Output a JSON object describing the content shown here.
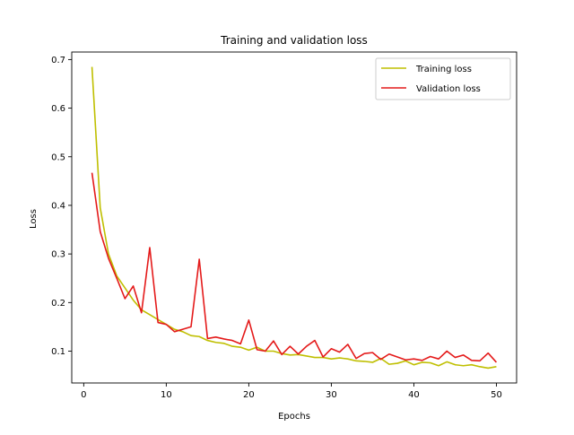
{
  "chart_data": {
    "type": "line",
    "title": "Training and validation loss",
    "xlabel": "Epochs",
    "ylabel": "Loss",
    "xlim": [
      -1.45,
      52.45
    ],
    "ylim": [
      0.0345,
      0.7155
    ],
    "xticks": [
      0,
      10,
      20,
      30,
      40,
      50
    ],
    "yticks": [
      0.1,
      0.2,
      0.3,
      0.4,
      0.5,
      0.6,
      0.7
    ],
    "xtick_labels": [
      "0",
      "10",
      "20",
      "30",
      "40",
      "50"
    ],
    "ytick_labels": [
      "0.1",
      "0.2",
      "0.3",
      "0.4",
      "0.5",
      "0.6",
      "0.7"
    ],
    "legend_position": "upper right",
    "grid": false,
    "x": [
      1,
      2,
      3,
      4,
      5,
      6,
      7,
      8,
      9,
      10,
      11,
      12,
      13,
      14,
      15,
      16,
      17,
      18,
      19,
      20,
      21,
      22,
      23,
      24,
      25,
      26,
      27,
      28,
      29,
      30,
      31,
      32,
      33,
      34,
      35,
      36,
      37,
      38,
      39,
      40,
      41,
      42,
      43,
      44,
      45,
      46,
      47,
      48,
      49,
      50
    ],
    "series": [
      {
        "name": "Training loss",
        "color": "#bfbf00",
        "values": [
          0.685,
          0.395,
          0.3,
          0.255,
          0.23,
          0.205,
          0.185,
          0.175,
          0.165,
          0.155,
          0.145,
          0.14,
          0.132,
          0.13,
          0.122,
          0.118,
          0.116,
          0.11,
          0.108,
          0.102,
          0.108,
          0.1,
          0.1,
          0.095,
          0.092,
          0.093,
          0.09,
          0.087,
          0.087,
          0.084,
          0.086,
          0.084,
          0.08,
          0.079,
          0.077,
          0.085,
          0.073,
          0.075,
          0.08,
          0.072,
          0.077,
          0.076,
          0.07,
          0.078,
          0.072,
          0.07,
          0.072,
          0.068,
          0.065,
          0.068
        ]
      },
      {
        "name": "Validation loss",
        "color": "#e41a1a",
        "values": [
          0.467,
          0.346,
          0.291,
          0.25,
          0.208,
          0.234,
          0.179,
          0.313,
          0.159,
          0.155,
          0.14,
          0.145,
          0.15,
          0.289,
          0.126,
          0.129,
          0.125,
          0.122,
          0.115,
          0.164,
          0.103,
          0.1,
          0.121,
          0.093,
          0.11,
          0.094,
          0.11,
          0.122,
          0.088,
          0.105,
          0.098,
          0.114,
          0.085,
          0.095,
          0.097,
          0.083,
          0.094,
          0.088,
          0.082,
          0.084,
          0.081,
          0.089,
          0.084,
          0.1,
          0.087,
          0.092,
          0.081,
          0.08,
          0.096,
          0.077
        ]
      }
    ]
  }
}
